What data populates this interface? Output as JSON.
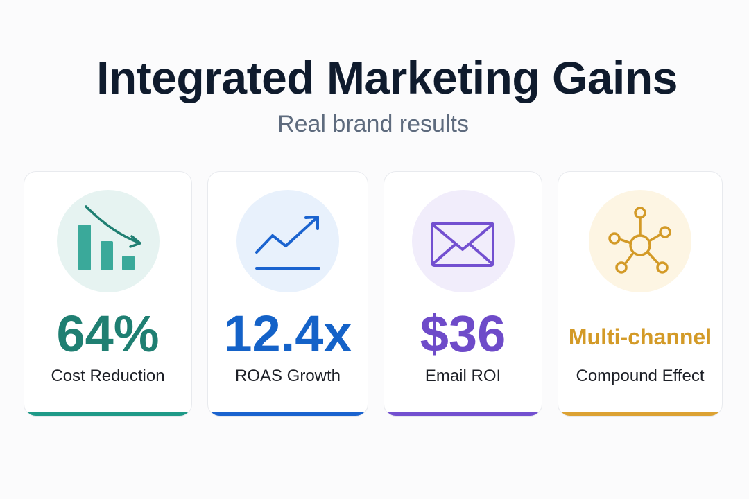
{
  "header": {
    "title": "Integrated Marketing Gains",
    "subtitle": "Real brand results"
  },
  "cards": [
    {
      "value": "64%",
      "label": "Cost Reduction",
      "icon": "declining-bar-chart-icon",
      "accent": "#1f7f72",
      "icon_bg": "#e6f3f1",
      "bar_color": "#1f9a88"
    },
    {
      "value": "12.4x",
      "label": "ROAS Growth",
      "icon": "trending-up-icon",
      "accent": "#1462c8",
      "icon_bg": "#e8f1fc",
      "bar_color": "#1a63cf"
    },
    {
      "value": "$36",
      "label": "Email ROI",
      "icon": "envelope-icon",
      "accent": "#6e4bc9",
      "icon_bg": "#f1edfb",
      "bar_color": "#7350d0"
    },
    {
      "value": "Multi-channel",
      "label": "Compound Effect",
      "icon": "network-hub-icon",
      "accent": "#d39a27",
      "icon_bg": "#fdf5e3",
      "bar_color": "#dca233"
    }
  ]
}
